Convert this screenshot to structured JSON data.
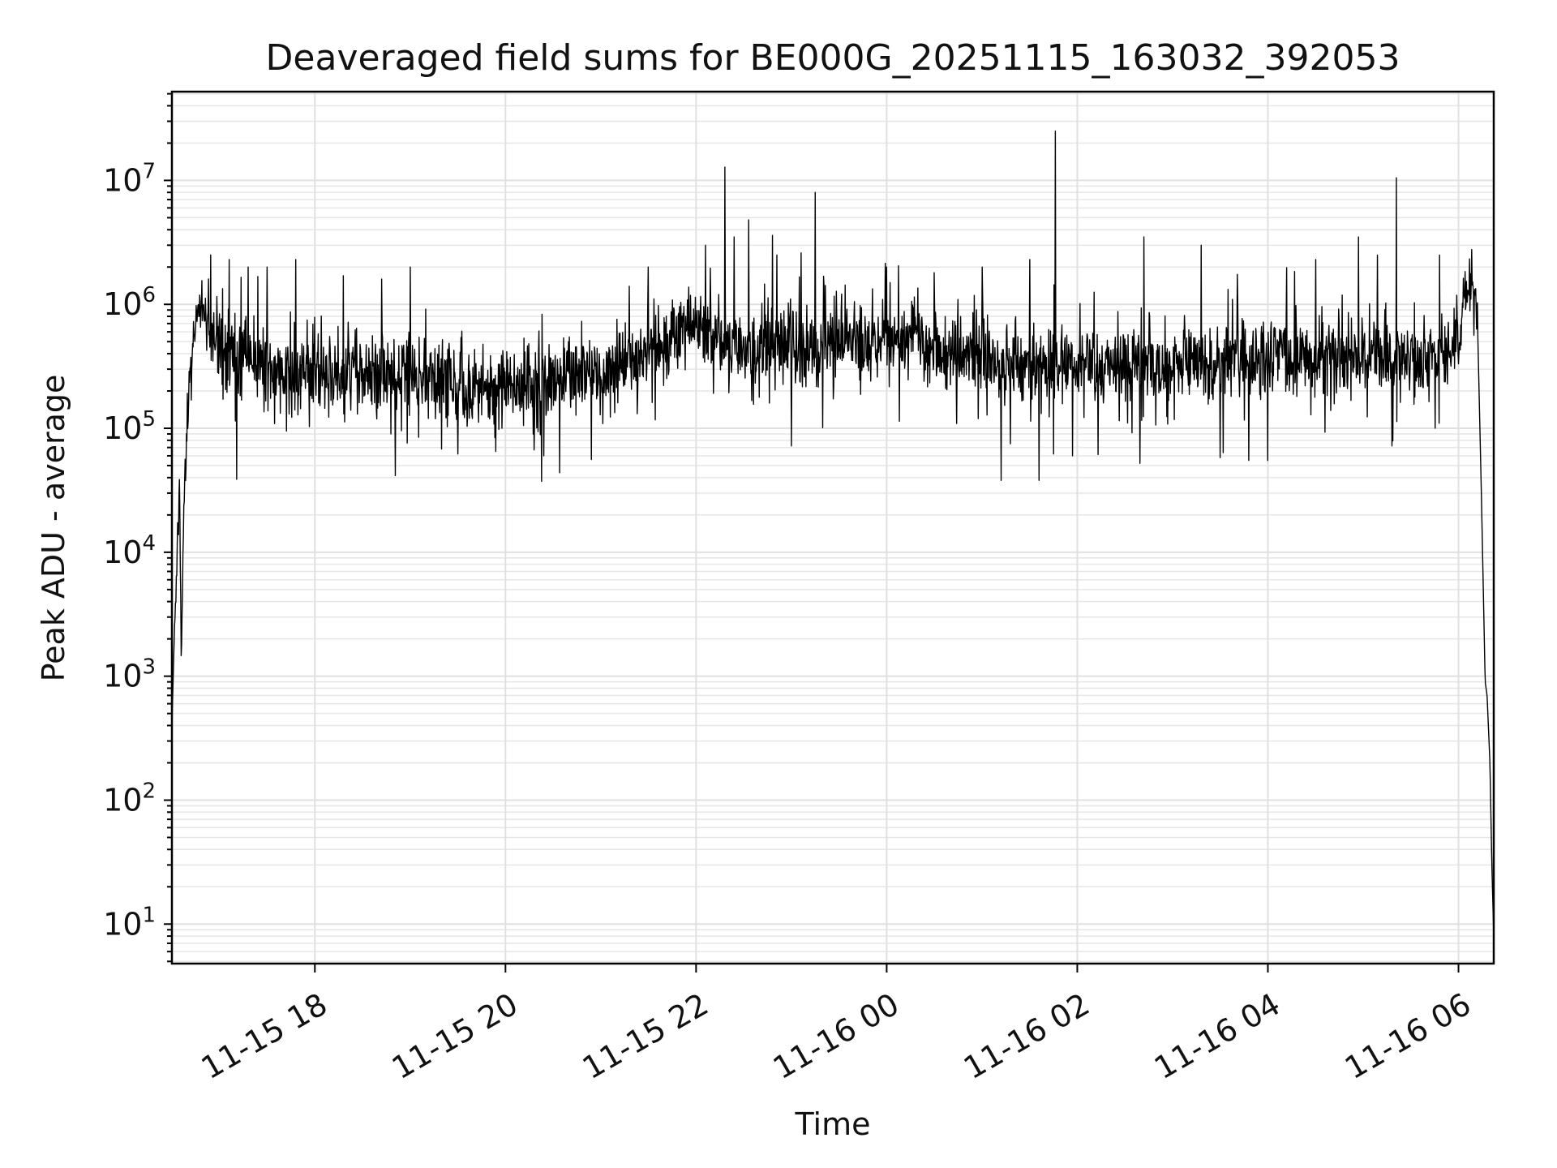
{
  "chart_data": {
    "type": "line",
    "title": "Deaveraged field sums for BE000G_20251115_163032_392053",
    "xlabel": "Time",
    "ylabel": "Peak ADU - average",
    "yscale": "log",
    "grid": true,
    "x_unit": "hours since 11-15 16:30",
    "xlim": [
      0,
      13.87
    ],
    "ylim": [
      4.8,
      52000000
    ],
    "x_ticks": [
      {
        "x": 1.5,
        "label": "11-15 18"
      },
      {
        "x": 3.5,
        "label": "11-15 20"
      },
      {
        "x": 5.5,
        "label": "11-15 22"
      },
      {
        "x": 7.5,
        "label": "11-16 00"
      },
      {
        "x": 9.5,
        "label": "11-16 02"
      },
      {
        "x": 11.5,
        "label": "11-16 04"
      },
      {
        "x": 13.5,
        "label": "11-16 06"
      }
    ],
    "y_ticks": [
      {
        "value": 10,
        "base": "10",
        "exp": "1"
      },
      {
        "value": 100,
        "base": "10",
        "exp": "2"
      },
      {
        "value": 1000,
        "base": "10",
        "exp": "3"
      },
      {
        "value": 10000,
        "base": "10",
        "exp": "4"
      },
      {
        "value": 100000,
        "base": "10",
        "exp": "5"
      },
      {
        "value": 1000000,
        "base": "10",
        "exp": "6"
      },
      {
        "value": 10000000,
        "base": "10",
        "exp": "7"
      }
    ],
    "series": [
      {
        "name": "deaveraged field sum",
        "color": "#000000",
        "anchors": [
          [
            0.0,
            400
          ],
          [
            0.03,
            3000
          ],
          [
            0.06,
            15000
          ],
          [
            0.08,
            30000
          ],
          [
            0.1,
            1400
          ],
          [
            0.12,
            20000
          ],
          [
            0.15,
            70000
          ],
          [
            0.2,
            300000
          ],
          [
            0.25,
            700000
          ],
          [
            0.3,
            1000000
          ],
          [
            0.35,
            800000
          ],
          [
            0.45,
            450000
          ],
          [
            1.0,
            300000
          ],
          [
            1.5,
            270000
          ],
          [
            2.0,
            280000
          ],
          [
            2.5,
            270000
          ],
          [
            3.0,
            230000
          ],
          [
            3.5,
            220000
          ],
          [
            4.0,
            250000
          ],
          [
            4.5,
            300000
          ],
          [
            5.0,
            420000
          ],
          [
            5.3,
            550000
          ],
          [
            5.5,
            700000
          ],
          [
            5.7,
            550000
          ],
          [
            6.0,
            420000
          ],
          [
            6.5,
            450000
          ],
          [
            7.0,
            500000
          ],
          [
            7.5,
            550000
          ],
          [
            7.8,
            530000
          ],
          [
            8.2,
            420000
          ],
          [
            8.8,
            330000
          ],
          [
            9.5,
            320000
          ],
          [
            10.0,
            340000
          ],
          [
            10.5,
            320000
          ],
          [
            11.0,
            330000
          ],
          [
            11.5,
            370000
          ],
          [
            12.0,
            400000
          ],
          [
            12.5,
            380000
          ],
          [
            13.0,
            370000
          ],
          [
            13.5,
            450000
          ],
          [
            13.6,
            1300000
          ],
          [
            13.65,
            1500000
          ],
          [
            13.7,
            700000
          ],
          [
            13.74,
            30000
          ],
          [
            13.78,
            900
          ],
          [
            13.8,
            700
          ],
          [
            13.83,
            200
          ],
          [
            13.85,
            30
          ],
          [
            13.87,
            8
          ]
        ],
        "noise_region": [
          0.35,
          13.7
        ],
        "noise_sigma_log10": 0.16,
        "dip_events": [
          [
            1.2,
            95000
          ],
          [
            2.3,
            90000
          ],
          [
            3.0,
            62000
          ],
          [
            3.4,
            65000
          ],
          [
            3.9,
            60000
          ],
          [
            4.4,
            56000
          ],
          [
            6.5,
            72000
          ],
          [
            7.5,
            110000
          ],
          [
            8.7,
            38000
          ],
          [
            8.8,
            75000
          ],
          [
            9.1,
            38000
          ],
          [
            9.25,
            62000
          ],
          [
            9.45,
            60000
          ],
          [
            11.0,
            58000
          ],
          [
            11.3,
            55000
          ],
          [
            11.5,
            55000
          ],
          [
            12.8,
            72000
          ],
          [
            13.3,
            75000
          ]
        ],
        "spike_events": [
          [
            0.6,
            2300000
          ],
          [
            0.8,
            2000000
          ],
          [
            1.0,
            2000000
          ],
          [
            1.3,
            2300000
          ],
          [
            1.8,
            1700000
          ],
          [
            2.2,
            1600000
          ],
          [
            2.5,
            2000000
          ],
          [
            4.8,
            1400000
          ],
          [
            5.0,
            2000000
          ],
          [
            5.6,
            3000000
          ],
          [
            5.8,
            12800000
          ],
          [
            5.9,
            3500000
          ],
          [
            6.05,
            4800000
          ],
          [
            6.3,
            3600000
          ],
          [
            6.35,
            2500000
          ],
          [
            6.75,
            8000000
          ],
          [
            6.6,
            2600000
          ],
          [
            7.5,
            2000000
          ],
          [
            8.0,
            1800000
          ],
          [
            8.5,
            2000000
          ],
          [
            9.0,
            2300000
          ],
          [
            9.27,
            25000000
          ],
          [
            10.2,
            3500000
          ],
          [
            10.8,
            3000000
          ],
          [
            12.0,
            2300000
          ],
          [
            12.45,
            3500000
          ],
          [
            12.65,
            2500000
          ],
          [
            12.85,
            10500000
          ],
          [
            13.3,
            2500000
          ]
        ]
      }
    ]
  }
}
